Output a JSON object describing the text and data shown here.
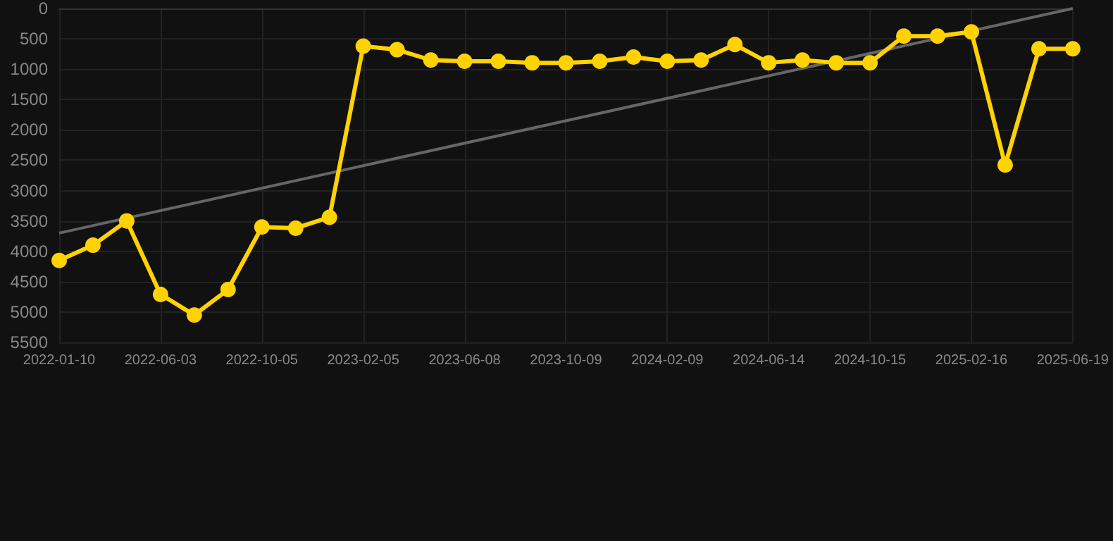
{
  "chart_data": {
    "type": "line",
    "categories": [
      "2022-01-10",
      null,
      null,
      "2022-06-03",
      null,
      null,
      "2022-10-05",
      null,
      null,
      "2023-02-05",
      null,
      null,
      "2023-06-08",
      null,
      null,
      "2023-10-09",
      null,
      null,
      "2024-02-09",
      null,
      null,
      "2024-06-14",
      null,
      null,
      "2024-10-15",
      null,
      null,
      "2025-02-16",
      null,
      null,
      "2025-06-19"
    ],
    "series": [
      {
        "color": "#ffd200",
        "marker": "circle",
        "values": [
          4150,
          3900,
          3500,
          4710,
          5050,
          4630,
          3600,
          3620,
          3440,
          620,
          680,
          850,
          870,
          870,
          895,
          895,
          870,
          800,
          870,
          850,
          595,
          895,
          850,
          895,
          895,
          455,
          455,
          385,
          2580,
          665,
          665
        ]
      },
      {
        "color": "#666666",
        "marker": "none",
        "values": [
          3700,
          null,
          null,
          null,
          null,
          null,
          null,
          null,
          null,
          null,
          null,
          null,
          null,
          null,
          null,
          null,
          null,
          null,
          null,
          null,
          null,
          null,
          null,
          null,
          null,
          null,
          null,
          null,
          null,
          null,
          0
        ]
      }
    ],
    "ylim": [
      5500,
      0
    ],
    "yticks": [
      0,
      500,
      1000,
      1500,
      2000,
      2500,
      3000,
      3500,
      4000,
      4500,
      5000,
      5500
    ],
    "grid": true
  }
}
